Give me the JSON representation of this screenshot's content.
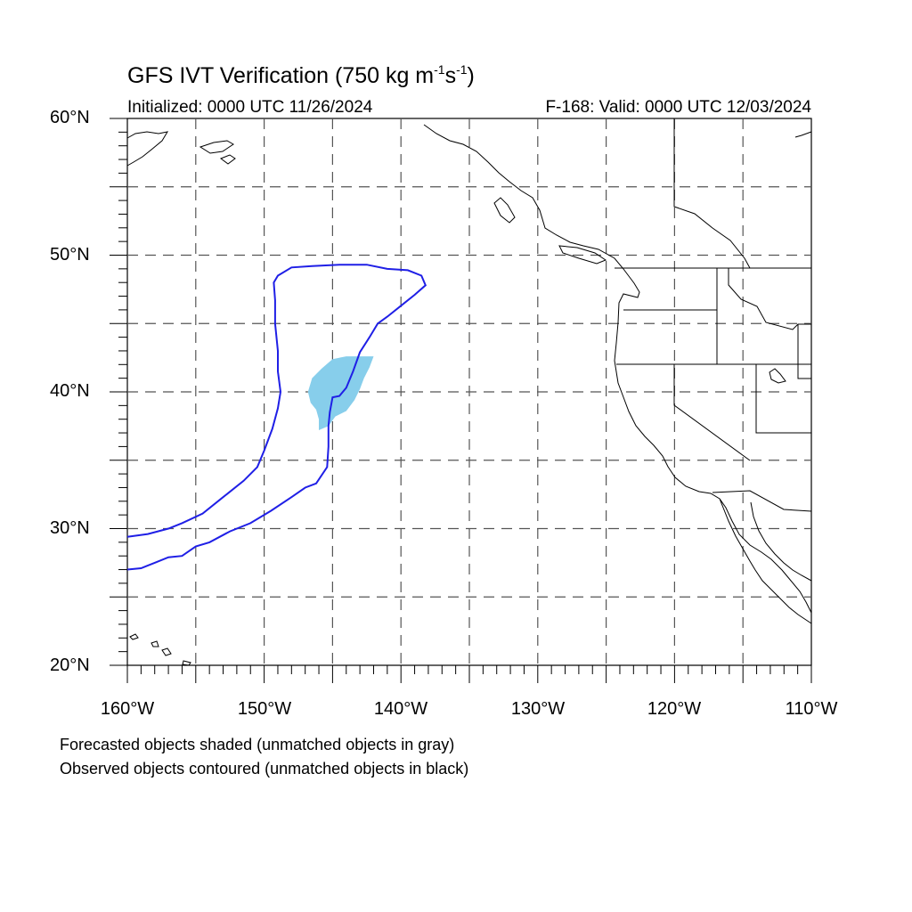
{
  "map": {
    "title_main": "GFS IVT Verification (750 kg m",
    "title_exp1": "-1",
    "title_mid": "s",
    "title_exp2": "-1",
    "title_close": ")",
    "initialized": "Initialized: 0000 UTC 11/26/2024",
    "valid": "F-168: Valid: 0000 UTC 12/03/2024",
    "lat_labels": [
      "60°N",
      "50°N",
      "40°N",
      "30°N",
      "20°N"
    ],
    "lon_labels": [
      "160°W",
      "150°W",
      "140°W",
      "130°W",
      "120°W",
      "110°W"
    ],
    "extent": {
      "lon_min": -160,
      "lon_max": -110,
      "lat_min": 20,
      "lat_max": 60
    },
    "gridline_spacing_deg": 5,
    "colors": {
      "forecast_fill": "#87ceeb",
      "observed_contour": "#1f1fe6",
      "coast": "#000000",
      "grid": "#555555"
    },
    "forecast_object": {
      "label": "matched forecast object (shaded)",
      "outline_lonlat": [
        [
          -146.8,
          40.0
        ],
        [
          -146.5,
          41.0
        ],
        [
          -145.8,
          41.7
        ],
        [
          -145.0,
          42.4
        ],
        [
          -144.0,
          42.6
        ],
        [
          -143.0,
          42.6
        ],
        [
          -142.0,
          42.6
        ],
        [
          -142.3,
          41.8
        ],
        [
          -142.7,
          41.0
        ],
        [
          -143.0,
          40.2
        ],
        [
          -143.4,
          39.4
        ],
        [
          -144.0,
          38.6
        ],
        [
          -144.8,
          38.2
        ],
        [
          -145.3,
          37.5
        ],
        [
          -146.0,
          37.2
        ],
        [
          -146.0,
          38.0
        ],
        [
          -146.2,
          38.7
        ],
        [
          -146.6,
          39.2
        ],
        [
          -146.8,
          40.0
        ]
      ]
    },
    "observed_object": {
      "label": "matched observed object (contoured)",
      "outline_lonlat": [
        [
          -160.0,
          29.4
        ],
        [
          -158.5,
          29.6
        ],
        [
          -157.0,
          30.0
        ],
        [
          -156.0,
          30.4
        ],
        [
          -154.5,
          31.1
        ],
        [
          -153.0,
          32.3
        ],
        [
          -151.5,
          33.5
        ],
        [
          -150.5,
          34.5
        ],
        [
          -150.0,
          35.7
        ],
        [
          -149.4,
          37.3
        ],
        [
          -149.0,
          38.8
        ],
        [
          -148.8,
          40.0
        ],
        [
          -149.0,
          41.5
        ],
        [
          -149.0,
          43.0
        ],
        [
          -149.2,
          45.0
        ],
        [
          -149.2,
          46.7
        ],
        [
          -149.3,
          48.0
        ],
        [
          -149.0,
          48.5
        ],
        [
          -148.0,
          49.1
        ],
        [
          -146.5,
          49.2
        ],
        [
          -144.5,
          49.3
        ],
        [
          -142.5,
          49.3
        ],
        [
          -141.0,
          49.0
        ],
        [
          -139.5,
          48.9
        ],
        [
          -138.5,
          48.5
        ],
        [
          -138.2,
          47.8
        ],
        [
          -139.0,
          47.1
        ],
        [
          -140.0,
          46.3
        ],
        [
          -141.0,
          45.5
        ],
        [
          -141.7,
          45.0
        ],
        [
          -142.3,
          44.0
        ],
        [
          -143.0,
          42.9
        ],
        [
          -143.5,
          41.5
        ],
        [
          -144.0,
          40.3
        ],
        [
          -144.5,
          39.7
        ],
        [
          -145.0,
          39.6
        ],
        [
          -145.2,
          38.5
        ],
        [
          -145.3,
          37.5
        ],
        [
          -145.3,
          36.0
        ],
        [
          -145.4,
          34.5
        ],
        [
          -146.2,
          33.3
        ],
        [
          -147.0,
          33.0
        ],
        [
          -148.0,
          32.3
        ],
        [
          -149.5,
          31.3
        ],
        [
          -151.0,
          30.4
        ],
        [
          -152.5,
          29.8
        ],
        [
          -154.0,
          29.0
        ],
        [
          -155.0,
          28.7
        ],
        [
          -156.0,
          28.0
        ],
        [
          -157.0,
          27.9
        ],
        [
          -158.0,
          27.5
        ],
        [
          -159.0,
          27.1
        ],
        [
          -160.0,
          27.0
        ]
      ]
    },
    "notes": [
      "Forecasted objects shaded (unmatched objects in gray)",
      "Observed objects contoured (unmatched objects in black)"
    ]
  }
}
